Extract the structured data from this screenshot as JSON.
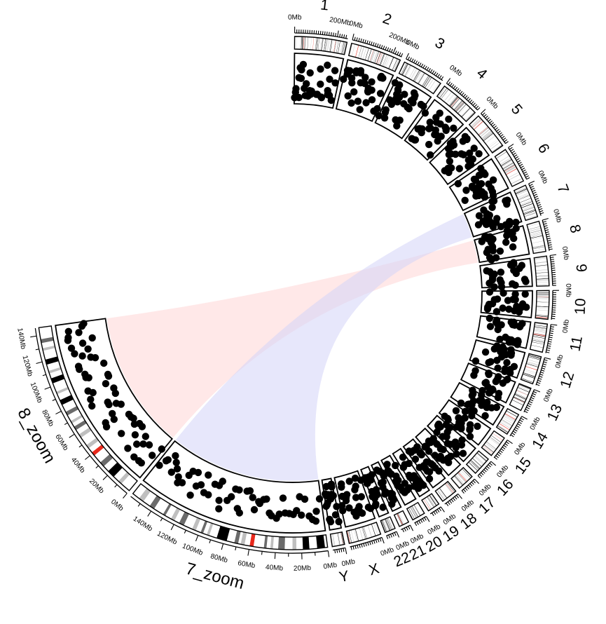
{
  "chart_data": {
    "type": "circos",
    "sectors": [
      {
        "name": "1",
        "length": 249,
        "ticks": [
          {
            "v": 0,
            "label": "0Mb"
          },
          {
            "v": 200,
            "label": "200Mb"
          }
        ]
      },
      {
        "name": "2",
        "length": 243,
        "ticks": [
          {
            "v": 0,
            "label": "0Mb"
          },
          {
            "v": 200,
            "label": "200Mb"
          }
        ]
      },
      {
        "name": "3",
        "length": 198,
        "ticks": [
          {
            "v": 0,
            "label": "0Mb"
          }
        ]
      },
      {
        "name": "4",
        "length": 191,
        "ticks": [
          {
            "v": 0,
            "label": "0Mb"
          }
        ]
      },
      {
        "name": "5",
        "length": 181,
        "ticks": [
          {
            "v": 0,
            "label": "0Mb"
          }
        ]
      },
      {
        "name": "6",
        "length": 171,
        "ticks": [
          {
            "v": 0,
            "label": "0Mb"
          }
        ]
      },
      {
        "name": "7",
        "length": 159,
        "ticks": [
          {
            "v": 0,
            "label": "0Mb"
          }
        ]
      },
      {
        "name": "8",
        "length": 146,
        "ticks": [
          {
            "v": 0,
            "label": "0Mb"
          }
        ]
      },
      {
        "name": "9",
        "length": 141,
        "ticks": [
          {
            "v": 0,
            "label": "0Mb"
          }
        ]
      },
      {
        "name": "10",
        "length": 136,
        "ticks": [
          {
            "v": 0,
            "label": "0Mb"
          }
        ]
      },
      {
        "name": "11",
        "length": 135,
        "ticks": [
          {
            "v": 0,
            "label": "0Mb"
          }
        ]
      },
      {
        "name": "12",
        "length": 134,
        "ticks": [
          {
            "v": 0,
            "label": "0Mb"
          }
        ]
      },
      {
        "name": "13",
        "length": 115,
        "ticks": [
          {
            "v": 0,
            "label": "0Mb"
          }
        ]
      },
      {
        "name": "14",
        "length": 107,
        "ticks": [
          {
            "v": 0,
            "label": "0Mb"
          }
        ]
      },
      {
        "name": "15",
        "length": 103,
        "ticks": [
          {
            "v": 0,
            "label": "0Mb"
          }
        ]
      },
      {
        "name": "16",
        "length": 90,
        "ticks": [
          {
            "v": 0,
            "label": "0Mb"
          }
        ]
      },
      {
        "name": "17",
        "length": 81,
        "ticks": [
          {
            "v": 0,
            "label": "0Mb"
          }
        ]
      },
      {
        "name": "18",
        "length": 78,
        "ticks": [
          {
            "v": 0,
            "label": "0Mb"
          }
        ]
      },
      {
        "name": "19",
        "length": 59,
        "ticks": [
          {
            "v": 0,
            "label": "0Mb"
          }
        ]
      },
      {
        "name": "20",
        "length": 63,
        "ticks": [
          {
            "v": 0,
            "label": "0Mb"
          }
        ]
      },
      {
        "name": "21",
        "length": 48,
        "ticks": [
          {
            "v": 0,
            "label": "0Mb"
          }
        ]
      },
      {
        "name": "22",
        "length": 51,
        "ticks": [
          {
            "v": 0,
            "label": "0Mb"
          }
        ]
      },
      {
        "name": "X",
        "length": 155,
        "ticks": [
          {
            "v": 0,
            "label": "0Mb"
          }
        ]
      },
      {
        "name": "Y",
        "length": 59,
        "ticks": [
          {
            "v": 0,
            "label": "0Mb"
          }
        ]
      },
      {
        "name": "7_zoom",
        "length": 159,
        "zoom": true,
        "ticks": [
          {
            "v": 0,
            "label": "0Mb"
          },
          {
            "v": 20,
            "label": "20Mb"
          },
          {
            "v": 40,
            "label": "40Mb"
          },
          {
            "v": 60,
            "label": "60Mb"
          },
          {
            "v": 80,
            "label": "80Mb"
          },
          {
            "v": 100,
            "label": "100Mb"
          },
          {
            "v": 120,
            "label": "120Mb"
          },
          {
            "v": 140,
            "label": "140Mb"
          }
        ]
      },
      {
        "name": "8_zoom",
        "length": 146,
        "zoom": true,
        "ticks": [
          {
            "v": 0,
            "label": "0Mb"
          },
          {
            "v": 20,
            "label": "20Mb"
          },
          {
            "v": 40,
            "label": "40Mb"
          },
          {
            "v": 60,
            "label": "60Mb"
          },
          {
            "v": 80,
            "label": "80Mb"
          },
          {
            "v": 100,
            "label": "100Mb"
          },
          {
            "v": 120,
            "label": "120Mb"
          },
          {
            "v": 140,
            "label": "140Mb"
          }
        ]
      }
    ],
    "zoom_bands": {
      "7_zoom": [
        {
          "start": 2,
          "end": 8,
          "color": "#000000"
        },
        {
          "start": 14,
          "end": 19,
          "color": "#000000"
        },
        {
          "start": 24,
          "end": 27,
          "color": "#bfbfbf"
        },
        {
          "start": 33,
          "end": 38,
          "color": "#6b6b6b"
        },
        {
          "start": 42,
          "end": 44,
          "color": "#bfbfbf"
        },
        {
          "start": 47,
          "end": 49,
          "color": "#6b6b6b"
        },
        {
          "start": 57,
          "end": 60,
          "color": "#e8291c"
        },
        {
          "start": 64,
          "end": 67,
          "color": "#bfbfbf"
        },
        {
          "start": 69,
          "end": 72,
          "color": "#6b6b6b"
        },
        {
          "start": 78,
          "end": 86,
          "color": "#000000"
        },
        {
          "start": 92,
          "end": 94,
          "color": "#bfbfbf"
        },
        {
          "start": 97,
          "end": 99,
          "color": "#6b6b6b"
        },
        {
          "start": 103,
          "end": 106,
          "color": "#bfbfbf"
        },
        {
          "start": 113,
          "end": 117,
          "color": "#6b6b6b"
        },
        {
          "start": 121,
          "end": 124,
          "color": "#bfbfbf"
        },
        {
          "start": 129,
          "end": 131,
          "color": "#6b6b6b"
        },
        {
          "start": 139,
          "end": 143,
          "color": "#6b6b6b"
        },
        {
          "start": 149,
          "end": 153,
          "color": "#bfbfbf"
        }
      ],
      "8_zoom": [
        {
          "start": 8,
          "end": 11,
          "color": "#bfbfbf"
        },
        {
          "start": 16,
          "end": 22,
          "color": "#000000"
        },
        {
          "start": 27,
          "end": 31,
          "color": "#6b6b6b"
        },
        {
          "start": 38,
          "end": 41,
          "color": "#e8291c"
        },
        {
          "start": 45,
          "end": 48,
          "color": "#bfbfbf"
        },
        {
          "start": 55,
          "end": 58,
          "color": "#bfbfbf"
        },
        {
          "start": 62,
          "end": 65,
          "color": "#6b6b6b"
        },
        {
          "start": 68,
          "end": 70,
          "color": "#bfbfbf"
        },
        {
          "start": 75,
          "end": 78,
          "color": "#6b6b6b"
        },
        {
          "start": 84,
          "end": 88,
          "color": "#000000"
        },
        {
          "start": 93,
          "end": 95,
          "color": "#bfbfbf"
        },
        {
          "start": 102,
          "end": 106,
          "color": "#000000"
        },
        {
          "start": 110,
          "end": 112,
          "color": "#bfbfbf"
        },
        {
          "start": 117,
          "end": 121,
          "color": "#000000"
        },
        {
          "start": 128,
          "end": 130,
          "color": "#bfbfbf"
        },
        {
          "start": 134,
          "end": 137,
          "color": "#6b6b6b"
        }
      ]
    },
    "links": [
      {
        "from_sector": "8_zoom",
        "from": [
          0,
          146
        ],
        "to_sector": "8",
        "to": [
          0,
          146
        ],
        "color": "#ffd6d6"
      },
      {
        "from_sector": "7_zoom",
        "from": [
          0,
          159
        ],
        "to_sector": "7",
        "to": [
          0,
          159
        ],
        "color": "#d4d4f8"
      }
    ],
    "points_per_genome_sector": 20,
    "zoom_point_count": 55,
    "colors": {
      "point": "#000000",
      "ideogram_band": "#000000",
      "ideogram_highlight": "#e8291c",
      "ideogram_grey": "#bfbfbf"
    }
  }
}
